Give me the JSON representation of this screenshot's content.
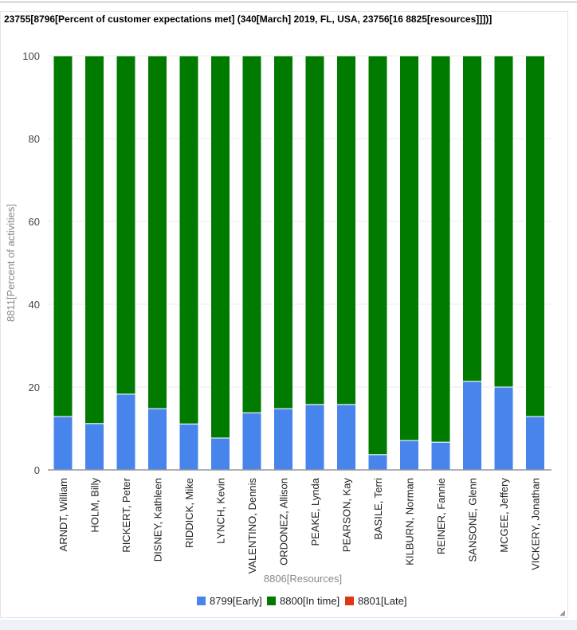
{
  "chart_data": {
    "type": "bar",
    "stacked": true,
    "title": "23755[8796[Percent of customer expectations met] (340[March] 2019, FL, USA, 23756[16 8825[resources]]])]",
    "xlabel": "8806[Resources]",
    "ylabel": "8811[Percent of activities]",
    "ylim": [
      0,
      100
    ],
    "yticks": [
      "0",
      "20",
      "40",
      "60",
      "80",
      "100"
    ],
    "grid": true,
    "legend_position": "bottom",
    "categories": [
      "ARNDT, William",
      "HOLM, Billy",
      "RICKERT, Peter",
      "DISNEY, Kathleen",
      "RIDDICK, Mike",
      "LYNCH, Kevin",
      "VALENTINO, Dennis",
      "ORDONEZ, Allison",
      "PEAKE, Lynda",
      "PEARSON, Kay",
      "BASILE, Terri",
      "KILBURN, Norman",
      "REINER, Fannie",
      "SANSONE, Glenn",
      "MCGEE, Jeffery",
      "VICKERY, Jonathan"
    ],
    "series": [
      {
        "name": "8799[Early]",
        "color": "#4784ec",
        "values": [
          12.9,
          11.2,
          18.3,
          14.8,
          11.1,
          7.7,
          13.8,
          14.8,
          15.8,
          15.8,
          3.7,
          7.1,
          6.7,
          21.4,
          20.0,
          12.9
        ]
      },
      {
        "name": "8800[In time]",
        "color": "#007b00",
        "values": [
          87.1,
          88.8,
          81.7,
          85.2,
          88.9,
          92.3,
          86.2,
          85.2,
          84.2,
          84.2,
          96.3,
          92.9,
          93.3,
          78.6,
          80.0,
          87.1
        ]
      },
      {
        "name": "8801[Late]",
        "color": "#dc3912",
        "values": [
          0,
          0,
          0,
          0,
          0,
          0,
          0,
          0,
          0,
          0,
          0,
          0,
          0,
          0,
          0,
          0
        ]
      }
    ]
  }
}
